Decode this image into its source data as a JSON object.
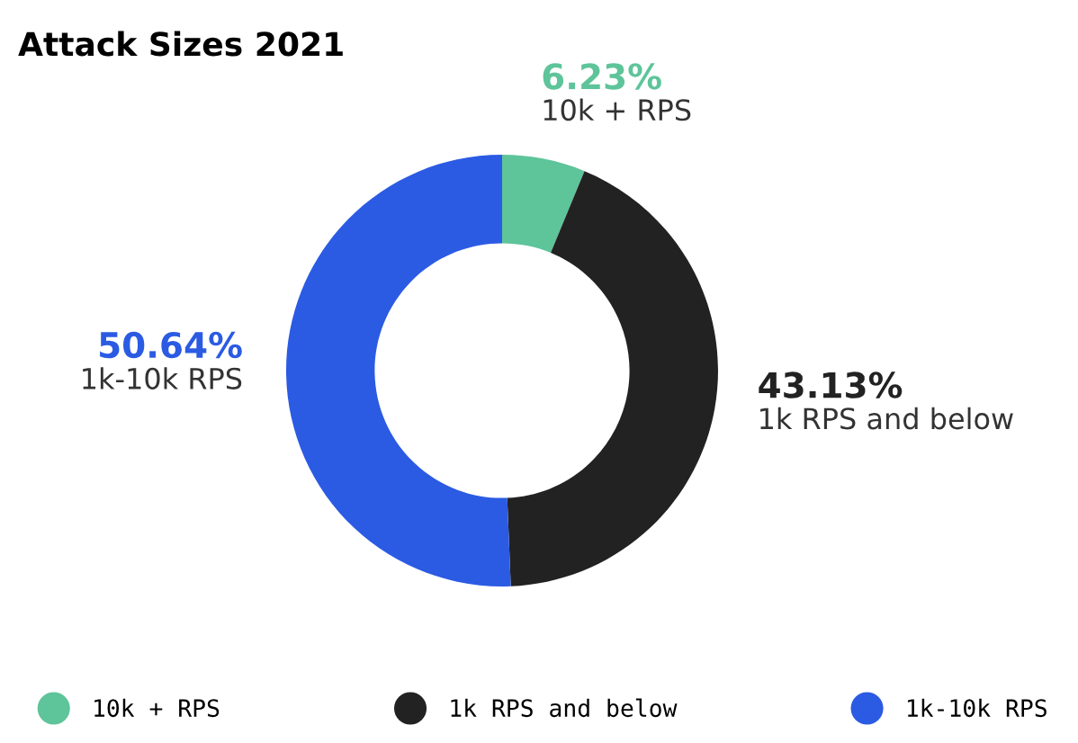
{
  "chart_data": {
    "type": "donut",
    "title": "Attack Sizes 2021",
    "categories": [
      "10k + RPS",
      "1k RPS and below",
      "1k-10k RPS"
    ],
    "values": [
      6.23,
      43.13,
      50.64
    ],
    "value_labels": [
      "6.23%",
      "43.13%",
      "50.64%"
    ],
    "colors": [
      "#5ec49a",
      "#222222",
      "#2b5be3"
    ],
    "legend": "bottom"
  }
}
